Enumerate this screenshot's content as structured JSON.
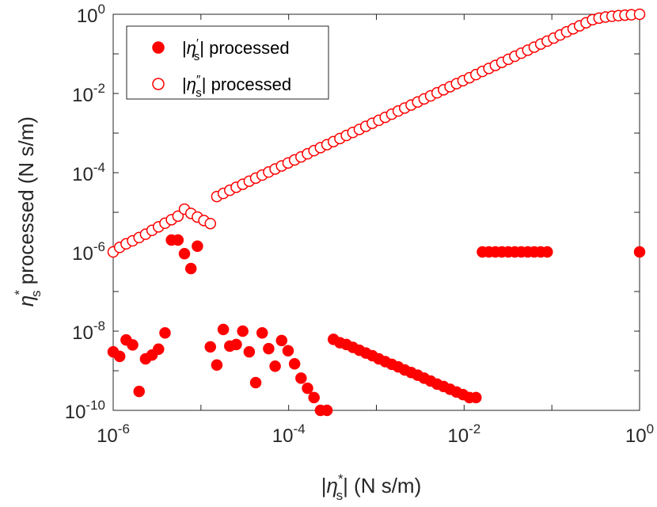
{
  "chart_data": {
    "type": "scatter",
    "xscale": "log",
    "yscale": "log",
    "xlim": [
      1e-06,
      1
    ],
    "ylim": [
      1e-10,
      1
    ],
    "xticks": [
      {
        "base": "10",
        "exp": "-6"
      },
      {
        "base": "10",
        "exp": "-4"
      },
      {
        "base": "10",
        "exp": "-2"
      },
      {
        "base": "10",
        "exp": "0"
      }
    ],
    "yticks": [
      {
        "base": "10",
        "exp": "-10"
      },
      {
        "base": "10",
        "exp": "-8"
      },
      {
        "base": "10",
        "exp": "-6"
      },
      {
        "base": "10",
        "exp": "-4"
      },
      {
        "base": "10",
        "exp": "-2"
      },
      {
        "base": "10",
        "exp": "0"
      }
    ],
    "xlabel": {
      "pre": "|",
      "eta": "η",
      "sub": "s",
      "sup": "*",
      "post": "|   (N s/m)"
    },
    "ylabel": {
      "eta": "η",
      "sub": "s",
      "sup": "*",
      "post": " processed   (N s/m)"
    },
    "legend_location": "top-left",
    "colors": {
      "series": "#ff0000",
      "axis": "#262626"
    },
    "series": [
      {
        "name": "|η′s| processed",
        "legend": {
          "pre": "|",
          "eta": "η",
          "prime": "′",
          "sub": "s",
          "post": "| processed"
        },
        "marker": "filled-circle",
        "points": [
          [
            1e-06,
            3e-09
          ],
          [
            1.185e-06,
            2.3e-09
          ],
          [
            1.405e-06,
            6e-09
          ],
          [
            1.665e-06,
            4.5e-09
          ],
          [
            1.974e-06,
            3e-10
          ],
          [
            2.34e-06,
            2e-09
          ],
          [
            2.773e-06,
            2.5e-09
          ],
          [
            3.287e-06,
            3.5e-09
          ],
          [
            3.896e-06,
            9e-09
          ],
          [
            4.618e-06,
            2e-06
          ],
          [
            5.474e-06,
            2e-06
          ],
          [
            6.489e-06,
            9e-07
          ],
          [
            7.692e-06,
            3.8e-07
          ],
          [
            9.117e-06,
            1.4e-06
          ],
          [
            1.281e-05,
            4e-09
          ],
          [
            1.518e-05,
            1.4e-09
          ],
          [
            1.799e-05,
            1.1e-08
          ],
          [
            2.133e-05,
            4.2e-09
          ],
          [
            2.528e-05,
            4.6e-09
          ],
          [
            2.997e-05,
            1e-08
          ],
          [
            3.552e-05,
            3e-09
          ],
          [
            4.211e-05,
            5e-10
          ],
          [
            4.991e-05,
            9e-09
          ],
          [
            5.916e-05,
            3.6e-09
          ],
          [
            7.013e-05,
            1.3e-09
          ],
          [
            8.312e-05,
            5.8e-09
          ],
          [
            9.853e-05,
            3.2e-09
          ],
          [
            0.0001168,
            1.5e-09
          ],
          [
            0.0001384,
            6.5e-10
          ],
          [
            0.0001641,
            3.6e-10
          ],
          [
            0.0001945,
            2.1e-10
          ],
          [
            0.0002305,
            1e-10
          ],
          [
            0.0002733,
            1e-10
          ],
          [
            0.0003239,
            6.2e-09
          ],
          [
            0.0003839,
            5.1e-09
          ],
          [
            0.0004551,
            4.6e-09
          ],
          [
            0.0005394,
            3.9e-09
          ],
          [
            0.0006394,
            3.3e-09
          ],
          [
            0.0007579,
            2.8e-09
          ],
          [
            0.0008984,
            2.4e-09
          ],
          [
            0.001065,
            2e-09
          ],
          [
            0.001262,
            1.7e-09
          ],
          [
            0.001496,
            1.45e-09
          ],
          [
            0.001774,
            1.25e-09
          ],
          [
            0.002102,
            1.05e-09
          ],
          [
            0.002492,
            9e-10
          ],
          [
            0.002954,
            7.7e-10
          ],
          [
            0.003501,
            6.5e-10
          ],
          [
            0.00415,
            5.5e-10
          ],
          [
            0.00492,
            4.6e-10
          ],
          [
            0.005831,
            4e-10
          ],
          [
            0.006912,
            3.4e-10
          ],
          [
            0.008193,
            2.9e-10
          ],
          [
            0.009711,
            2.5e-10
          ],
          [
            0.01151,
            2.1e-10
          ],
          [
            0.01364,
            2.1e-10
          ],
          [
            0.01617,
            1e-06
          ],
          [
            0.01917,
            1e-06
          ],
          [
            0.02272,
            1e-06
          ],
          [
            0.02693,
            1e-06
          ],
          [
            0.03192,
            1e-06
          ],
          [
            0.03784,
            1e-06
          ],
          [
            0.04486,
            1e-06
          ],
          [
            0.05317,
            1e-06
          ],
          [
            0.06302,
            1e-06
          ],
          [
            0.0747,
            1e-06
          ],
          [
            0.08855,
            1e-06
          ],
          [
            1.0,
            1e-06
          ]
        ]
      },
      {
        "name": "|η″s| processed",
        "legend": {
          "pre": "|",
          "eta": "η",
          "prime": "″",
          "sub": "s",
          "post": "| processed"
        },
        "marker": "open-circle",
        "points": [
          [
            1e-06,
            1e-06
          ],
          [
            1.185e-06,
            1.3e-06
          ],
          [
            1.405e-06,
            1.6e-06
          ],
          [
            1.665e-06,
            1.9e-06
          ],
          [
            1.974e-06,
            2.3e-06
          ],
          [
            2.34e-06,
            2.8e-06
          ],
          [
            2.773e-06,
            3.5e-06
          ],
          [
            3.287e-06,
            4.3e-06
          ],
          [
            3.896e-06,
            5.3e-06
          ],
          [
            4.618e-06,
            6.5e-06
          ],
          [
            5.474e-06,
            8e-06
          ],
          [
            6.489e-06,
            1.2e-05
          ],
          [
            7.692e-06,
            9.4e-06
          ],
          [
            9.117e-06,
            7.6e-06
          ],
          [
            1.081e-05,
            6.2e-06
          ],
          [
            1.281e-05,
            5.2e-06
          ],
          [
            1.518e-05,
            2.5e-05
          ],
          [
            1.799e-05,
            3e-05
          ],
          [
            2.133e-05,
            3.6e-05
          ],
          [
            2.528e-05,
            4.3e-05
          ],
          [
            2.997e-05,
            5.1e-05
          ],
          [
            3.552e-05,
            6.1e-05
          ],
          [
            4.211e-05,
            7.3e-05
          ],
          [
            4.991e-05,
            8.7e-05
          ],
          [
            5.916e-05,
            0.000104
          ],
          [
            7.013e-05,
            0.000124
          ],
          [
            8.312e-05,
            0.000148
          ],
          [
            9.853e-05,
            0.000176
          ],
          [
            0.0001168,
            0.00021
          ],
          [
            0.0001384,
            0.00025
          ],
          [
            0.0001641,
            0.0003
          ],
          [
            0.0001945,
            0.00036
          ],
          [
            0.0002305,
            0.00043
          ],
          [
            0.0002733,
            0.00051
          ],
          [
            0.0003239,
            0.00061
          ],
          [
            0.0003839,
            0.00073
          ],
          [
            0.0004551,
            0.00087
          ],
          [
            0.0005394,
            0.00104
          ],
          [
            0.0006394,
            0.00124
          ],
          [
            0.0007579,
            0.00148
          ],
          [
            0.0008984,
            0.00177
          ],
          [
            0.001065,
            0.0021
          ],
          [
            0.001262,
            0.0025
          ],
          [
            0.001496,
            0.003
          ],
          [
            0.001774,
            0.0036
          ],
          [
            0.002102,
            0.0043
          ],
          [
            0.002492,
            0.0051
          ],
          [
            0.002954,
            0.0061
          ],
          [
            0.003501,
            0.0073
          ],
          [
            0.00415,
            0.0087
          ],
          [
            0.00492,
            0.0104
          ],
          [
            0.005831,
            0.0124
          ],
          [
            0.006912,
            0.0148
          ],
          [
            0.008193,
            0.0177
          ],
          [
            0.009711,
            0.021
          ],
          [
            0.01151,
            0.025
          ],
          [
            0.01364,
            0.03
          ],
          [
            0.01617,
            0.036
          ],
          [
            0.01917,
            0.043
          ],
          [
            0.02272,
            0.051
          ],
          [
            0.02693,
            0.061
          ],
          [
            0.03192,
            0.073
          ],
          [
            0.03784,
            0.087
          ],
          [
            0.04486,
            0.104
          ],
          [
            0.05317,
            0.124
          ],
          [
            0.06302,
            0.148
          ],
          [
            0.0747,
            0.177
          ],
          [
            0.08855,
            0.21
          ],
          [
            0.105,
            0.25
          ],
          [
            0.1244,
            0.3
          ],
          [
            0.1475,
            0.36
          ],
          [
            0.1748,
            0.43
          ],
          [
            0.2072,
            0.51
          ],
          [
            0.2456,
            0.61
          ],
          [
            0.2911,
            0.73
          ],
          [
            0.3451,
            0.8
          ],
          [
            0.409,
            0.85
          ],
          [
            0.4848,
            0.89
          ],
          [
            0.5746,
            0.92
          ],
          [
            0.681,
            0.95
          ],
          [
            0.8072,
            0.97
          ],
          [
            1.0,
            1.0
          ]
        ]
      }
    ]
  }
}
